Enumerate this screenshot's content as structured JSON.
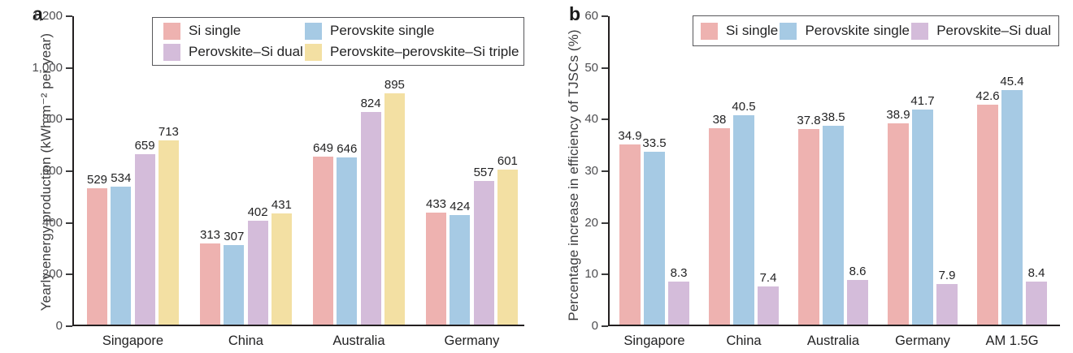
{
  "chart_data": [
    {
      "type": "bar",
      "panel": "a",
      "title": "",
      "xlabel": "",
      "ylabel": "Yearly energy production (kWh m⁻² per year)",
      "ylim": [
        0,
        1200
      ],
      "yticks": [
        0,
        200,
        400,
        600,
        800,
        1000,
        1200
      ],
      "ytick_labels": [
        "0",
        "200",
        "400",
        "600",
        "800",
        "1,000",
        "1,200"
      ],
      "categories": [
        "Singapore",
        "China",
        "Australia",
        "Germany"
      ],
      "series": [
        {
          "name": "Si single",
          "color": "#EEB2B0",
          "values": [
            529,
            313,
            649,
            433
          ]
        },
        {
          "name": "Perovskite single",
          "color": "#A6CAE4",
          "values": [
            534,
            307,
            646,
            424
          ]
        },
        {
          "name": "Perovskite–Si dual",
          "color": "#D4BCDA",
          "values": [
            659,
            402,
            824,
            557
          ]
        },
        {
          "name": "Perovskite–perovskite–Si triple",
          "color": "#F3E0A3",
          "values": [
            713,
            431,
            895,
            601
          ]
        }
      ],
      "bar_labels": true,
      "grid": false,
      "legend_position": "top-inside",
      "legend_columns": 2
    },
    {
      "type": "bar",
      "panel": "b",
      "title": "",
      "xlabel": "",
      "ylabel": "Percentage increase in efficiency of TJSCs (%)",
      "ylim": [
        0,
        60
      ],
      "yticks": [
        0,
        10,
        20,
        30,
        40,
        50,
        60
      ],
      "ytick_labels": [
        "0",
        "10",
        "20",
        "30",
        "40",
        "50",
        "60"
      ],
      "categories": [
        "Singapore",
        "China",
        "Australia",
        "Germany",
        "AM 1.5G"
      ],
      "series": [
        {
          "name": "Si single",
          "color": "#EEB2B0",
          "values": [
            34.9,
            38,
            37.8,
            38.9,
            42.6
          ]
        },
        {
          "name": "Perovskite single",
          "color": "#A6CAE4",
          "values": [
            33.5,
            40.5,
            38.5,
            41.7,
            45.4
          ]
        },
        {
          "name": "Perovskite–Si dual",
          "color": "#D4BCDA",
          "values": [
            8.3,
            7.4,
            8.6,
            7.9,
            8.4
          ]
        }
      ],
      "bar_labels": true,
      "grid": false,
      "legend_position": "top-inside",
      "legend_columns": 3
    }
  ]
}
